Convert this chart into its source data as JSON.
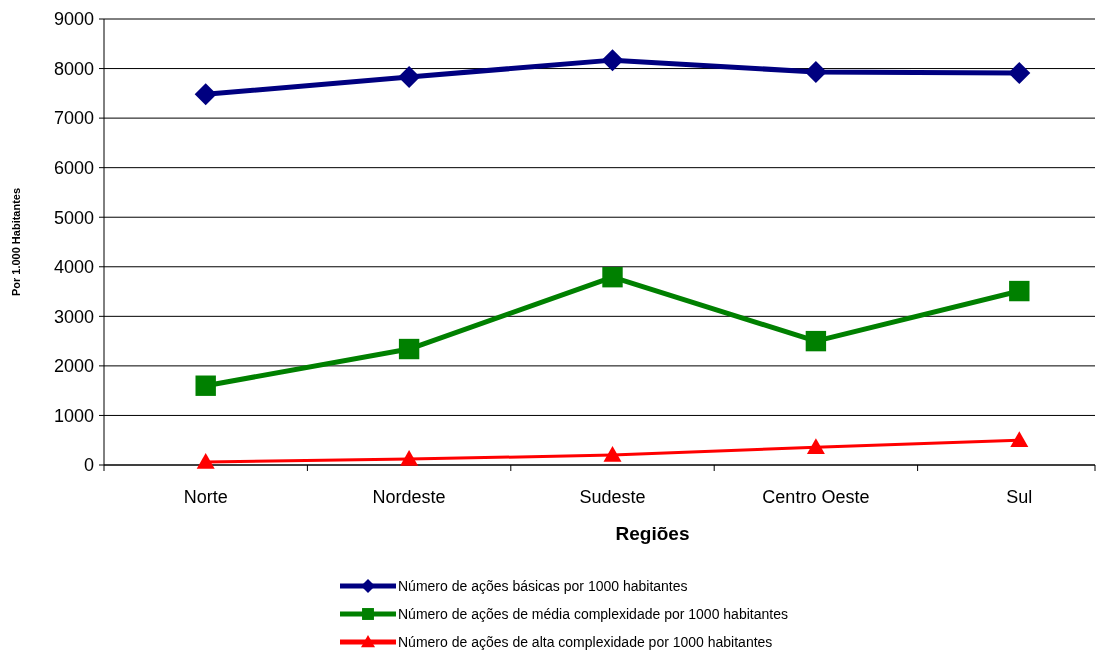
{
  "chart_data": {
    "type": "line",
    "xlabel": "Regiões",
    "ylabel": "Por 1.000 Habitantes",
    "categories": [
      "Norte",
      "Nordeste",
      "Sudeste",
      "Centro Oeste",
      "Sul"
    ],
    "series": [
      {
        "name": "Número de ações básicas por 1000 habitantes",
        "color": "#000080",
        "marker": "diamond",
        "values": [
          7480,
          7830,
          8170,
          7930,
          7910
        ]
      },
      {
        "name": "Número de ações de média complexidade por 1000 habitantes",
        "color": "#008000",
        "marker": "square",
        "values": [
          1600,
          2340,
          3790,
          2500,
          3510
        ]
      },
      {
        "name": "Número de ações de alta complexidade por 1000 habitantes",
        "color": "#ff0000",
        "marker": "triangle",
        "values": [
          60,
          120,
          200,
          360,
          500
        ]
      }
    ],
    "ylim": [
      0,
      9000
    ],
    "yticks": [
      0,
      1000,
      2000,
      3000,
      4000,
      5000,
      6000,
      7000,
      8000,
      9000
    ],
    "grid": "y",
    "legend": "bottom",
    "line_style": "solid"
  }
}
